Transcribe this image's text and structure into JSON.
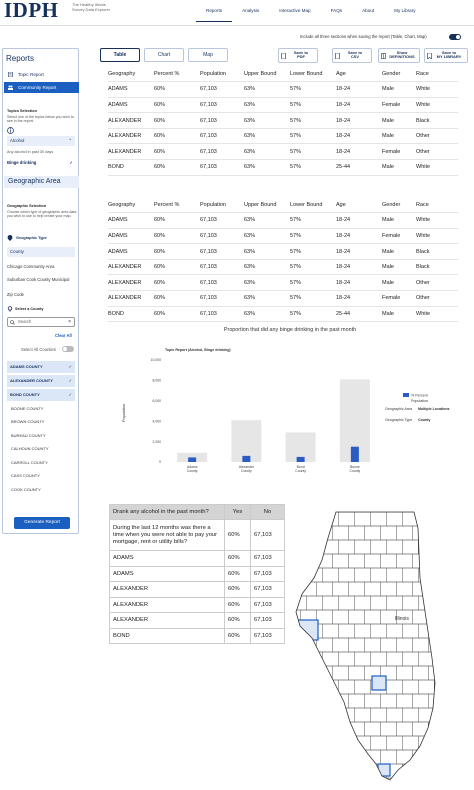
{
  "header": {
    "logo_text": "IDPH",
    "logo_sub": "The Healthy Illinois Survey Data Explorer",
    "nav": [
      "Reports",
      "Analysis",
      "Interactive Map",
      "FAQs",
      "About",
      "My Library"
    ]
  },
  "sidebar": {
    "title": "Reports",
    "nav": [
      "Topic Report",
      "Community Report"
    ],
    "topic_label": "Topics Selection",
    "topic_help": "Select one of the topics below you wish to see in the report.",
    "topic_chip": "Alcohol",
    "topic_question": "Any alcohol in past 30 days",
    "topic_selected": "Binge drinking",
    "geo_section": "Geographic Area",
    "geo_label": "Geographic Selection",
    "geo_help": "Choose which type of geographic area data you wish to use to help create your map.",
    "geo_type_label": "Geographic Type",
    "geo_type_selected": "County",
    "geo_options": [
      "Chicago Community Area",
      "Suburban Cook County Municipal",
      "Zip Code"
    ],
    "select_county_label": "Select a County",
    "search_placeholder": "Search",
    "clear_all": "Clear All",
    "select_all_label": "Select All Counties",
    "selected_counties": [
      "ADAMS COUNTY",
      "ALEXANDER COUNTY",
      "BOND COUNTY"
    ],
    "counties": [
      "BOONE COUNTY",
      "BROWN COUNTY",
      "BUREAU COUNTY",
      "CALHOUN COUNTY",
      "CARROLL COUNTY",
      "CASS COUNTY",
      "COOK COUNTY"
    ],
    "generate_label": "Generate Report"
  },
  "main": {
    "note": "Include all three sections when saving the report (Table, Chart, Map)",
    "tabs": [
      "Table",
      "Chart",
      "Map"
    ],
    "actions": [
      {
        "l1": "Save to",
        "l2": "PDF"
      },
      {
        "l1": "Save to",
        "l2": "CSV"
      },
      {
        "l1": "Show",
        "l2": "DEFINITIONS"
      },
      {
        "l1": "Save to",
        "l2": "MY LIBRARY"
      }
    ],
    "table1": {
      "headers": [
        "Geography",
        "Percent %",
        "Population",
        "Upper Bound",
        "Lower Bound",
        "Age",
        "Gender",
        "Race"
      ],
      "rows": [
        [
          "ADAMS",
          "60%",
          "67,103",
          "63%",
          "57%",
          "18-24",
          "Male",
          "White"
        ],
        [
          "ADAMS",
          "60%",
          "67,103",
          "63%",
          "57%",
          "18-24",
          "Female",
          "White"
        ],
        [
          "ALEXANDER",
          "60%",
          "67,103",
          "63%",
          "57%",
          "18-24",
          "Male",
          "Black"
        ],
        [
          "ALEXANDER",
          "60%",
          "67,103",
          "63%",
          "57%",
          "18-24",
          "Male",
          "Other"
        ],
        [
          "ALEXANDER",
          "60%",
          "67,103",
          "63%",
          "57%",
          "18-24",
          "Female",
          "Other"
        ],
        [
          "BOND",
          "60%",
          "67,103",
          "63%",
          "57%",
          "25-44",
          "Male",
          "White"
        ]
      ]
    },
    "table2": {
      "headers": [
        "Geography",
        "Percent %",
        "Population",
        "Upper Bound",
        "Lower Bound",
        "Age",
        "Gender",
        "Race"
      ],
      "rows": [
        [
          "ADAMS",
          "60%",
          "67,103",
          "63%",
          "57%",
          "18-24",
          "Male",
          "White"
        ],
        [
          "ADAMS",
          "60%",
          "67,103",
          "63%",
          "57%",
          "18-24",
          "Female",
          "White"
        ],
        [
          "ADAMS",
          "60%",
          "67,103",
          "63%",
          "57%",
          "18-24",
          "Male",
          "Black"
        ],
        [
          "ALEXANDER",
          "60%",
          "67,103",
          "63%",
          "57%",
          "18-24",
          "Male",
          "Black"
        ],
        [
          "ALEXANDER",
          "60%",
          "67,103",
          "63%",
          "57%",
          "18-24",
          "Male",
          "Other"
        ],
        [
          "ALEXANDER",
          "60%",
          "67,103",
          "63%",
          "57%",
          "18-24",
          "Female",
          "Other"
        ],
        [
          "BOND",
          "60%",
          "67,103",
          "63%",
          "57%",
          "25-44",
          "Male",
          "White"
        ]
      ]
    },
    "question_table": {
      "headers": [
        "Drank any alcohol in the past month?",
        "Yes",
        "No"
      ],
      "rows": [
        [
          "During the last 12 months was there a time when you were not able to pay your mortgage, rent or utility bills?",
          "60%",
          "67,103"
        ],
        [
          "ADAMS",
          "60%",
          "67,103"
        ],
        [
          "ADAMS",
          "60%",
          "67,103"
        ],
        [
          "ALEXANDER",
          "60%",
          "67,103"
        ],
        [
          "ALEXANDER",
          "60%",
          "67,103"
        ],
        [
          "ALEXANDER",
          "60%",
          "67,103"
        ],
        [
          "BOND",
          "60%",
          "67,103"
        ]
      ]
    },
    "map_label": "Illinois"
  },
  "chart_data": {
    "type": "bar",
    "title": "Proportion that did any binge drinking in the past month",
    "subtitle": "Topic Report (Alcohol, Binge drinking)",
    "ylabel": "Population",
    "ylim": [
      0,
      10000
    ],
    "yticks": [
      "0",
      "2,000",
      "4,000",
      "6,000",
      "8,000",
      "10,000"
    ],
    "categories": [
      "Adams County",
      "Alexander County",
      "Bond County",
      "Boone County"
    ],
    "series": [
      {
        "name": "Population",
        "values": [
          900,
          4100,
          2900,
          8100
        ],
        "color": "#e6e6e6"
      },
      {
        "name": "% Percent",
        "values": [
          450,
          600,
          500,
          1500
        ],
        "color": "#2b5cc4"
      }
    ],
    "legend": [
      "% Percent",
      "Population"
    ],
    "info": [
      {
        "k": "Geographic Area",
        "v": "Multiple Locations"
      },
      {
        "k": "Geographic Type",
        "v": "County"
      }
    ]
  },
  "colors": {
    "brand": "#16305c",
    "accent": "#1b5fc1",
    "selected_bg": "#dbe6f6"
  }
}
